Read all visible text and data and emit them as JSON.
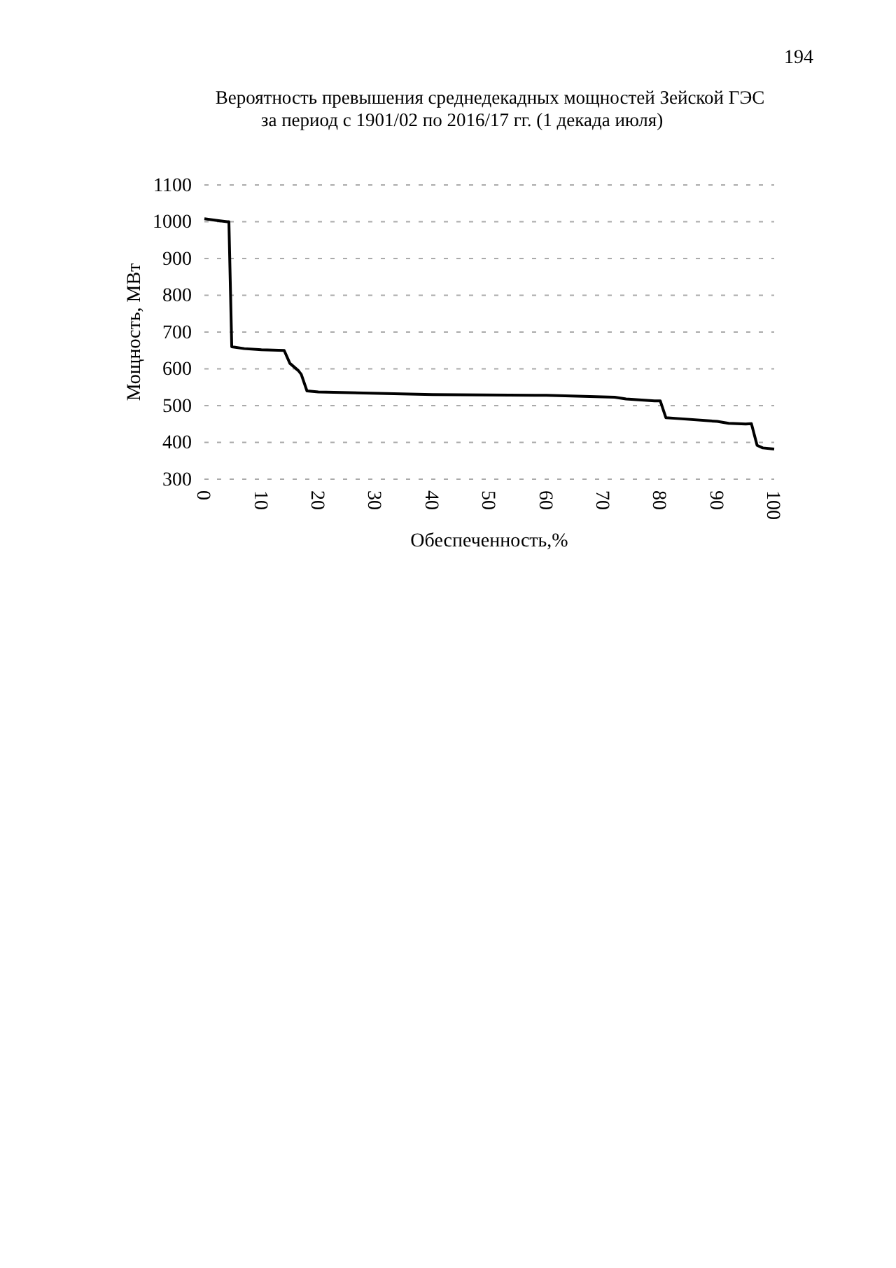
{
  "chart_data": {
    "type": "line",
    "title": "Вероятность превышения среднедекадных мощностей Зейской ГЭС\nза период с 1901/02 по 2016/17 гг. (1 декада июля)",
    "xlabel": "Обеспеченность,%",
    "ylabel": "Мощность, МВт",
    "annotations": [
      "194"
    ],
    "x": [
      0,
      2,
      4,
      4.3,
      4.8,
      7,
      10,
      14,
      15,
      16.5,
      17,
      18,
      20,
      40,
      60,
      72,
      74,
      79,
      80,
      81,
      83,
      90,
      92,
      95,
      96,
      97,
      98,
      100
    ],
    "values": [
      1008,
      1004,
      1000,
      1000,
      660,
      655,
      652,
      650,
      615,
      595,
      585,
      540,
      537,
      530,
      528,
      523,
      518,
      513,
      513,
      467,
      465,
      457,
      452,
      450,
      451,
      392,
      385,
      382
    ],
    "color": "#000000",
    "xlim": [
      0,
      100
    ],
    "xticks": [
      0,
      10,
      20,
      30,
      40,
      50,
      60,
      70,
      80,
      90,
      100
    ],
    "ylim": [
      300,
      1100
    ],
    "yticks": [
      300,
      400,
      500,
      600,
      700,
      800,
      900,
      1000,
      1100
    ],
    "grid": "y"
  }
}
